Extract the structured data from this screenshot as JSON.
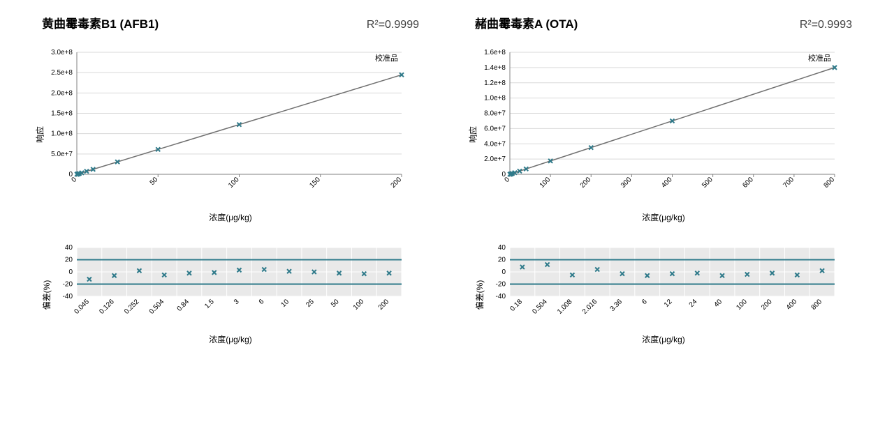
{
  "panels": [
    {
      "title": "黄曲霉毒素B1 (AFB1)",
      "r2_label": "R²=0.9999",
      "legend": "校准品",
      "ylabel": "响应",
      "xlabel": "浓度(μg/kg)",
      "resid_ylabel": "偏差(%)",
      "resid_xlabel": "浓度(μg/kg)",
      "calib": {
        "type": "scatter-line",
        "marker": "x",
        "marker_color": "#2f7a8a",
        "marker_size": 6,
        "line_color": "#707070",
        "background_color": "#ffffff",
        "grid_color": "#d9d9d9",
        "xlim": [
          0,
          200
        ],
        "ylim": [
          0,
          300000000
        ],
        "xticks": [
          0,
          50,
          100,
          150,
          200
        ],
        "yticks": [
          0,
          50000000,
          100000000,
          150000000,
          200000000,
          250000000,
          300000000
        ],
        "ytick_labels": [
          "0",
          "5.0e+7",
          "1.0e+8",
          "1.5e+8",
          "2.0e+8",
          "2.5e+8",
          "3.0e+8"
        ],
        "points_x": [
          0.045,
          0.126,
          0.252,
          0.504,
          0.84,
          1.5,
          3,
          6,
          10,
          25,
          50,
          100,
          200
        ],
        "points_y": [
          55000,
          154000,
          308000,
          616000,
          1027000,
          1834000,
          3668000,
          7336000,
          12227000,
          30569000,
          61139000,
          122279000,
          244559000
        ],
        "fit_from": [
          0,
          0
        ],
        "fit_to": [
          200,
          244559000
        ]
      },
      "resid": {
        "type": "scatter",
        "marker": "x",
        "marker_color": "#2f7a8a",
        "marker_size": 6,
        "background_color": "#e9e9e9",
        "grid_color": "#ffffff",
        "band_at": [
          20,
          -20
        ],
        "band_color": "#2f7a8a",
        "ylim": [
          -40,
          40
        ],
        "yticks": [
          -40,
          -20,
          0,
          20,
          40
        ],
        "x_categories": [
          "0.045",
          "0.126",
          "0.252",
          "0.504",
          "0.84",
          "1.5",
          "3",
          "6",
          "10",
          "25",
          "50",
          "100",
          "200"
        ],
        "values": [
          -12,
          -6,
          2,
          -5,
          -2,
          -1,
          3,
          4,
          1,
          0,
          -2,
          -3,
          -2
        ]
      }
    },
    {
      "title": "赭曲霉毒素A (OTA)",
      "r2_label": "R²=0.9993",
      "legend": "校准品",
      "ylabel": "响应",
      "xlabel": "浓度(μg/kg)",
      "resid_ylabel": "偏差(%)",
      "resid_xlabel": "浓度(μg/kg)",
      "calib": {
        "type": "scatter-line",
        "marker": "x",
        "marker_color": "#2f7a8a",
        "marker_size": 6,
        "line_color": "#707070",
        "background_color": "#ffffff",
        "grid_color": "#d9d9d9",
        "xlim": [
          0,
          800
        ],
        "ylim": [
          0,
          160000000
        ],
        "xticks": [
          0,
          100,
          200,
          300,
          400,
          500,
          600,
          700,
          800
        ],
        "yticks": [
          0,
          20000000,
          40000000,
          60000000,
          80000000,
          100000000,
          120000000,
          140000000,
          160000000
        ],
        "ytick_labels": [
          "0",
          "2.0e+7",
          "4.0e+7",
          "6.0e+7",
          "8.0e+7",
          "1.0e+8",
          "1.2e+8",
          "1.4e+8",
          "1.6e+8"
        ],
        "points_x": [
          0.18,
          0.504,
          1.008,
          2.016,
          3.36,
          6,
          12,
          24,
          40,
          100,
          200,
          400,
          800
        ],
        "points_y": [
          31500,
          88200,
          176400,
          352800,
          588000,
          1050000,
          2100000,
          4200000,
          7000000,
          17500000,
          35000000,
          70000000,
          140000000
        ],
        "fit_from": [
          0,
          0
        ],
        "fit_to": [
          800,
          140000000
        ]
      },
      "resid": {
        "type": "scatter",
        "marker": "x",
        "marker_color": "#2f7a8a",
        "marker_size": 6,
        "background_color": "#e9e9e9",
        "grid_color": "#ffffff",
        "band_at": [
          20,
          -20
        ],
        "band_color": "#2f7a8a",
        "ylim": [
          -40,
          40
        ],
        "yticks": [
          -40,
          -20,
          0,
          20,
          40
        ],
        "x_categories": [
          "0.18",
          "0.504",
          "1.008",
          "2.016",
          "3.36",
          "6",
          "12",
          "24",
          "40",
          "100",
          "200",
          "400",
          "800"
        ],
        "values": [
          8,
          12,
          -5,
          4,
          -3,
          -6,
          -3,
          -2,
          -6,
          -4,
          -2,
          -5,
          2
        ]
      }
    }
  ]
}
